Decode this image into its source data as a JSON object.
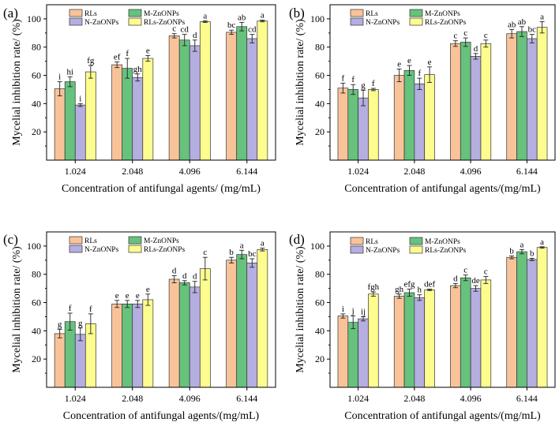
{
  "chart_data": [
    {
      "panel": "(a)",
      "type": "bar",
      "xlabel": "Concentration of antifungal agents/ (mg/mL)",
      "ylabel": "Mycelial inhibition rate/ (%)",
      "ylim": [
        0,
        110
      ],
      "yticks": [
        20,
        40,
        60,
        80,
        100
      ],
      "categories": [
        "1.024",
        "2.048",
        "4.096",
        "6.144"
      ],
      "legend_position": "top-left",
      "grid": false,
      "series": [
        {
          "name": "RLs",
          "color": "#f9c39a",
          "values": [
            50.5,
            67.5,
            88,
            90.5
          ],
          "errors": [
            5,
            2,
            1.5,
            1.5
          ],
          "letters": [
            "i",
            "ef",
            "c",
            "bc"
          ]
        },
        {
          "name": "M-ZnONPs",
          "color": "#66c27c",
          "values": [
            55.5,
            65,
            85,
            94.5
          ],
          "errors": [
            3.5,
            7,
            4,
            3
          ],
          "letters": [
            "hi",
            "f",
            "cd",
            "ab"
          ]
        },
        {
          "name": "N-ZnONPs",
          "color": "#b5aee0",
          "values": [
            39,
            58.5,
            81,
            86
          ],
          "errors": [
            1,
            2.5,
            4,
            3
          ],
          "letters": [
            "i",
            "gh",
            "d",
            "cd"
          ]
        },
        {
          "name": "RLs-ZnONPs",
          "color": "#fcfc8f",
          "values": [
            62.5,
            72,
            98,
            98.5
          ],
          "errors": [
            4.5,
            2,
            0.6,
            0.6
          ],
          "letters": [
            "fg",
            "e",
            "a",
            "a"
          ]
        }
      ]
    },
    {
      "panel": "(b)",
      "type": "bar",
      "xlabel": "Concentration of antifungal agents/(mg/mL)",
      "ylabel": "Mycelial inhibition rate/ (%)",
      "ylim": [
        0,
        110
      ],
      "yticks": [
        20,
        40,
        60,
        80,
        100
      ],
      "categories": [
        "1.024",
        "2.048",
        "4.096",
        "6.144"
      ],
      "legend_position": "top-left",
      "grid": false,
      "series": [
        {
          "name": "RLs",
          "color": "#f9c39a",
          "values": [
            51,
            60,
            82.5,
            89.5
          ],
          "errors": [
            3.5,
            4.5,
            2,
            3
          ],
          "letters": [
            "f",
            "e",
            "c",
            "ab"
          ]
        },
        {
          "name": "M-ZnONPs",
          "color": "#66c27c",
          "values": [
            50,
            63.5,
            83.5,
            91
          ],
          "errors": [
            3.5,
            3.5,
            3,
            3.5
          ],
          "letters": [
            "f",
            "e",
            "c",
            "ab"
          ]
        },
        {
          "name": "N-ZnONPs",
          "color": "#b5aee0",
          "values": [
            44,
            54,
            73.5,
            86
          ],
          "errors": [
            5.5,
            4,
            2,
            3
          ],
          "letters": [
            "g",
            "f",
            "d",
            "bc"
          ]
        },
        {
          "name": "RLs-ZnONPs",
          "color": "#fcfc8f",
          "values": [
            50,
            60.5,
            82.5,
            94
          ],
          "errors": [
            0.8,
            5.5,
            2.5,
            4
          ],
          "letters": [
            "f",
            "e",
            "c",
            "a"
          ]
        }
      ]
    },
    {
      "panel": "(c)",
      "type": "bar",
      "xlabel": "Concentration of antifungal agents/(mg/mL)",
      "ylabel": "Mycelial inhibition rate/ (%)",
      "ylim": [
        0,
        110
      ],
      "yticks": [
        20,
        40,
        60,
        80,
        100
      ],
      "categories": [
        "1.024",
        "2.048",
        "4.096",
        "6.144"
      ],
      "legend_position": "top-left",
      "grid": false,
      "series": [
        {
          "name": "RLs",
          "color": "#f9c39a",
          "values": [
            38,
            59,
            76.5,
            90
          ],
          "errors": [
            3,
            2.5,
            2.5,
            2
          ],
          "letters": [
            "g",
            "e",
            "d",
            "b"
          ]
        },
        {
          "name": "M-ZnONPs",
          "color": "#66c27c",
          "values": [
            46.5,
            59,
            74,
            94
          ],
          "errors": [
            6,
            2.5,
            1.5,
            3
          ],
          "letters": [
            "f",
            "e",
            "d",
            "a"
          ]
        },
        {
          "name": "N-ZnONPs",
          "color": "#b5aee0",
          "values": [
            37.5,
            59,
            71,
            88
          ],
          "errors": [
            4.5,
            2.5,
            4,
            3
          ],
          "letters": [
            "g",
            "e",
            "d",
            "bc"
          ]
        },
        {
          "name": "RLs-ZnONPs",
          "color": "#fcfc8f",
          "values": [
            45,
            62,
            84,
            97.5
          ],
          "errors": [
            7,
            4,
            8,
            1
          ],
          "letters": [
            "f",
            "e",
            "c",
            "a"
          ]
        }
      ]
    },
    {
      "panel": "(d)",
      "type": "bar",
      "xlabel": "Concentration of antifungal agents/(mg/mL)",
      "ylabel": "Mycelial inhibition rate/ (%)",
      "ylim": [
        0,
        110
      ],
      "yticks": [
        20,
        40,
        60,
        80,
        100
      ],
      "categories": [
        "1.024",
        "2.048",
        "4.096",
        "6.144"
      ],
      "legend_position": "top-left",
      "grid": false,
      "series": [
        {
          "name": "RLs",
          "color": "#f9c39a",
          "values": [
            50.5,
            64.5,
            72,
            92
          ],
          "errors": [
            1.5,
            1.5,
            1.5,
            1
          ],
          "letters": [
            "i",
            "gh",
            "d",
            "b"
          ]
        },
        {
          "name": "M-ZnONPs",
          "color": "#66c27c",
          "values": [
            46,
            67,
            77.5,
            96
          ],
          "errors": [
            4.5,
            2.5,
            2,
            1.5
          ],
          "letters": [
            "j",
            "efg",
            "c",
            "a"
          ]
        },
        {
          "name": "N-ZnONPs",
          "color": "#b5aee0",
          "values": [
            48.5,
            63.5,
            70,
            90.5
          ],
          "errors": [
            1.5,
            2,
            2,
            0.8
          ],
          "letters": [
            "ij",
            "h",
            "de",
            "b"
          ]
        },
        {
          "name": "RLs-ZnONPs",
          "color": "#fcfc8f",
          "values": [
            66,
            69,
            76,
            99
          ],
          "errors": [
            1.5,
            0.5,
            2.5,
            0.5
          ],
          "letters": [
            "fgh",
            "def",
            "c",
            "a"
          ]
        }
      ]
    }
  ]
}
